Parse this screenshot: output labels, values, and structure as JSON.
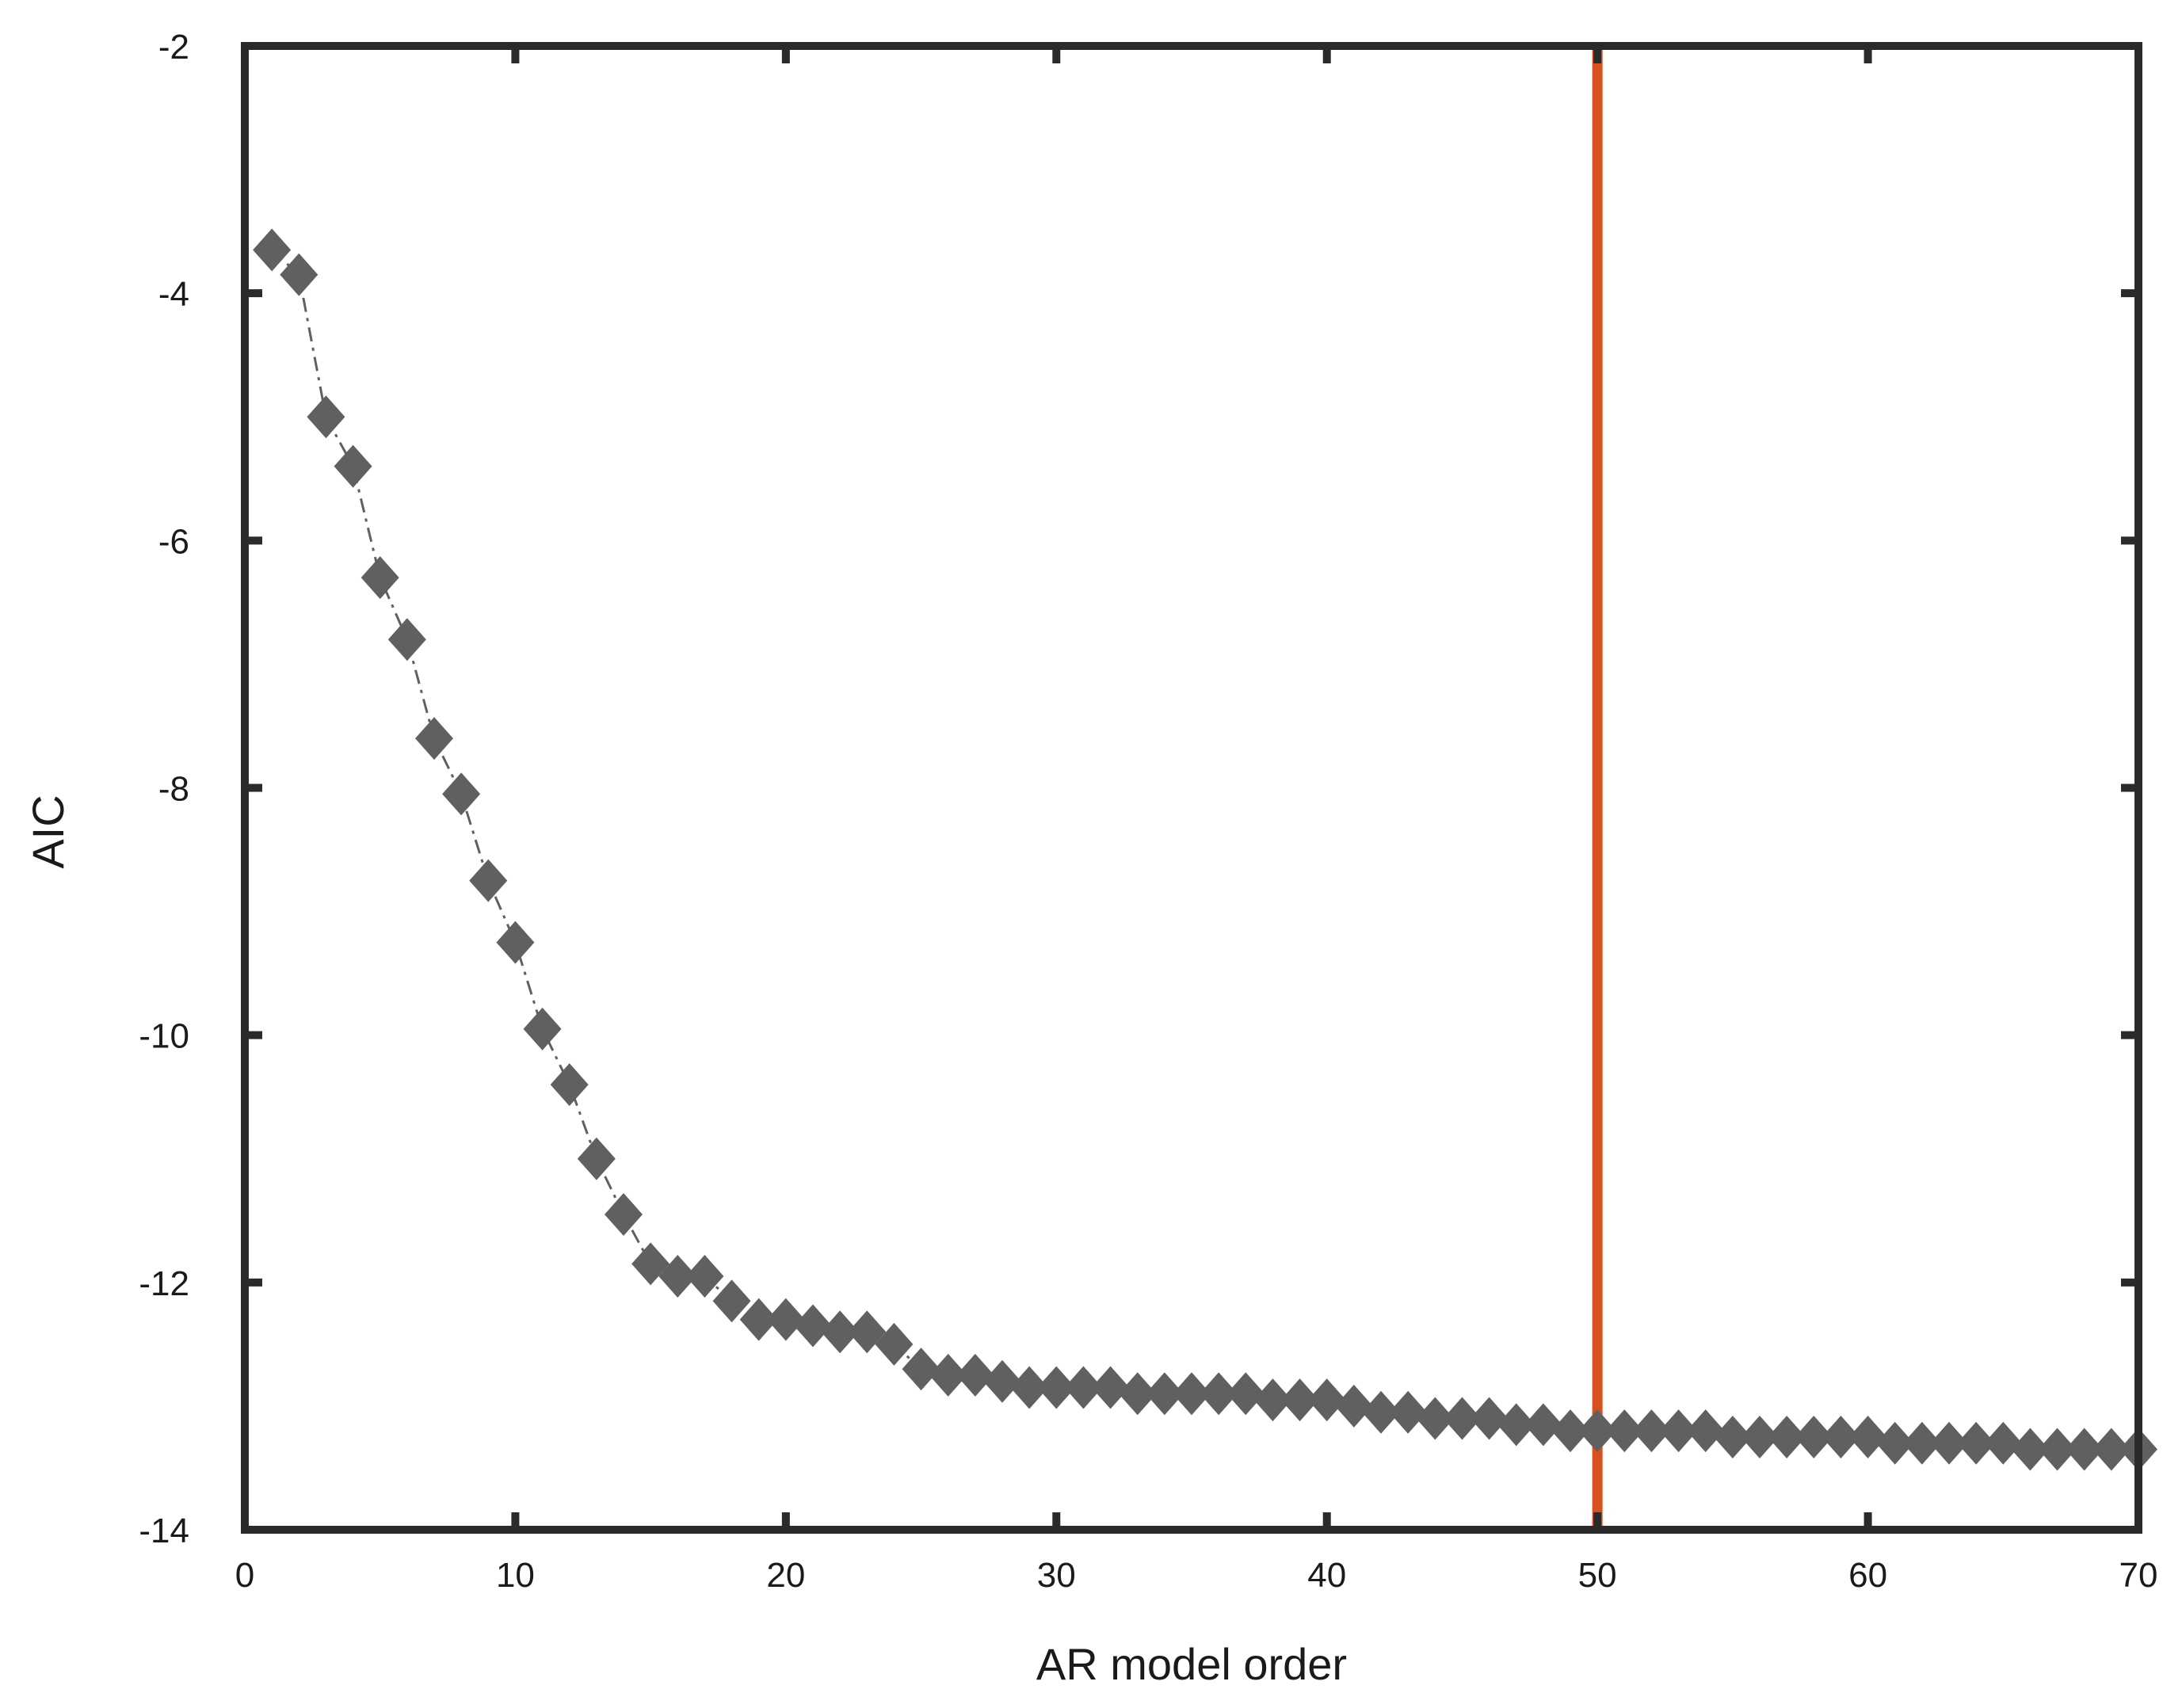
{
  "chart_data": {
    "type": "scatter",
    "title": "",
    "xlabel": "AR model order",
    "ylabel": "AIC",
    "xlim": [
      0,
      70
    ],
    "ylim": [
      -14,
      -2
    ],
    "xticks": [
      0,
      10,
      20,
      30,
      40,
      50,
      60,
      70
    ],
    "yticks": [
      -2,
      -4,
      -6,
      -8,
      -10,
      -12,
      -14
    ],
    "xtick_labels": [
      "0",
      "10",
      "20",
      "30",
      "40",
      "50",
      "60",
      "70"
    ],
    "ytick_labels": [
      "-2",
      "-4",
      "-6",
      "-8",
      "-10",
      "-12",
      "-14"
    ],
    "grid": false,
    "series": [
      {
        "marker": "diamond",
        "line_style": "dash-dot",
        "color": "#606060",
        "x": [
          1,
          2,
          3,
          4,
          5,
          6,
          7,
          8,
          9,
          10,
          11,
          12,
          13,
          14,
          15,
          16,
          17,
          18,
          19,
          20,
          21,
          22,
          23,
          24,
          25,
          26,
          27,
          28,
          29,
          30,
          31,
          32,
          33,
          34,
          35,
          36,
          37,
          38,
          39,
          40,
          41,
          42,
          43,
          44,
          45,
          46,
          47,
          48,
          49,
          50,
          51,
          52,
          53,
          54,
          55,
          56,
          57,
          58,
          59,
          60,
          61,
          62,
          63,
          64,
          65,
          66,
          67,
          68,
          69,
          70
        ],
        "y": [
          -3.65,
          -3.85,
          -5.0,
          -5.4,
          -6.3,
          -6.8,
          -7.6,
          -8.05,
          -8.75,
          -9.25,
          -9.95,
          -10.4,
          -11.0,
          -11.45,
          -11.85,
          -11.95,
          -11.95,
          -12.15,
          -12.3,
          -12.3,
          -12.35,
          -12.4,
          -12.4,
          -12.5,
          -12.7,
          -12.75,
          -12.75,
          -12.8,
          -12.85,
          -12.85,
          -12.85,
          -12.85,
          -12.9,
          -12.9,
          -12.9,
          -12.9,
          -12.9,
          -12.95,
          -12.95,
          -12.95,
          -13.0,
          -13.05,
          -13.05,
          -13.1,
          -13.1,
          -13.1,
          -13.15,
          -13.15,
          -13.2,
          -13.2,
          -13.2,
          -13.2,
          -13.2,
          -13.2,
          -13.25,
          -13.25,
          -13.25,
          -13.25,
          -13.25,
          -13.25,
          -13.3,
          -13.3,
          -13.3,
          -13.3,
          -13.3,
          -13.35,
          -13.35,
          -13.35,
          -13.35,
          -13.35
        ]
      }
    ],
    "reference_lines": [
      {
        "orientation": "vertical",
        "x": 50,
        "color": "#d9501f"
      }
    ],
    "colors": {
      "frame": "#2b2b2b",
      "marker": "#606060",
      "reference": "#d9501f",
      "text": "#1a1a1a"
    }
  }
}
